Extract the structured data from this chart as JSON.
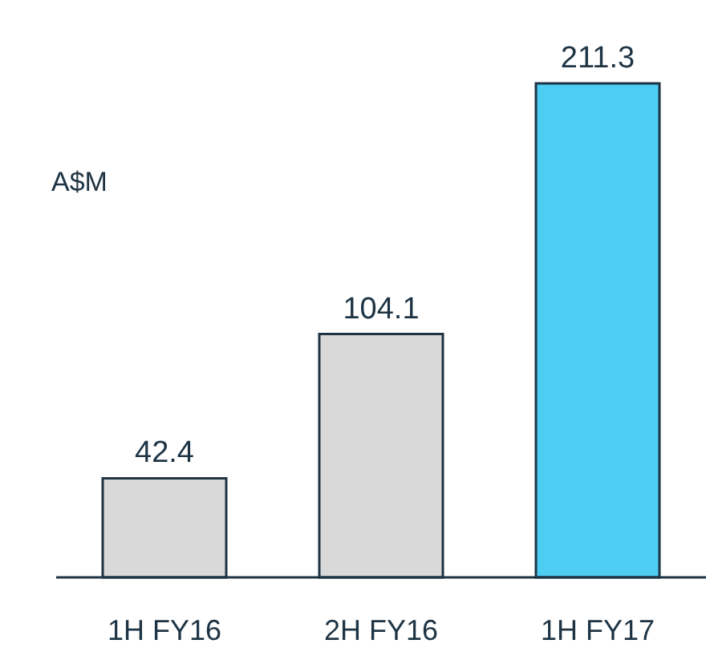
{
  "chart_data": {
    "type": "bar",
    "ylabel": "A$M",
    "categories": [
      "1H FY16",
      "2H FY16",
      "1H FY17"
    ],
    "values": [
      42.4,
      104.1,
      211.3
    ],
    "colors": [
      "#d9d9d9",
      "#d9d9d9",
      "#4dcdf2"
    ],
    "data_labels": true,
    "grid": false,
    "legend": false
  }
}
